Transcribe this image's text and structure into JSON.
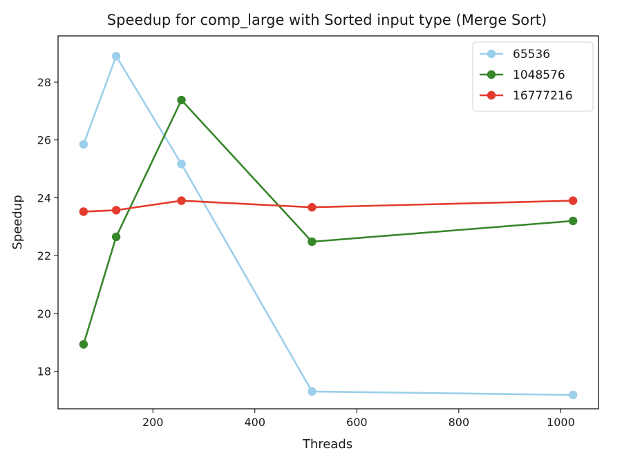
{
  "chart_data": {
    "type": "line",
    "title": "Speedup for comp_large with Sorted input type (Merge Sort)",
    "xlabel": "Threads",
    "ylabel": "Speedup",
    "x": [
      64,
      128,
      256,
      512,
      1024
    ],
    "xlim": [
      14,
      1074
    ],
    "ylim": [
      16.7,
      29.6
    ],
    "xticks": [
      200,
      400,
      600,
      800,
      1000
    ],
    "yticks": [
      18,
      20,
      22,
      24,
      26,
      28
    ],
    "grid": false,
    "legend_position": "top-right",
    "series": [
      {
        "name": "65536",
        "color": "#9ccfea",
        "values": [
          25.85,
          28.9,
          25.17,
          17.3,
          17.18
        ]
      },
      {
        "name": "1048576",
        "color": "#37862a",
        "values": [
          18.93,
          22.65,
          27.38,
          22.48,
          23.2
        ]
      },
      {
        "name": "16777216",
        "color": "#e33b2c",
        "values": [
          23.52,
          23.57,
          23.9,
          23.67,
          23.9
        ]
      }
    ]
  }
}
